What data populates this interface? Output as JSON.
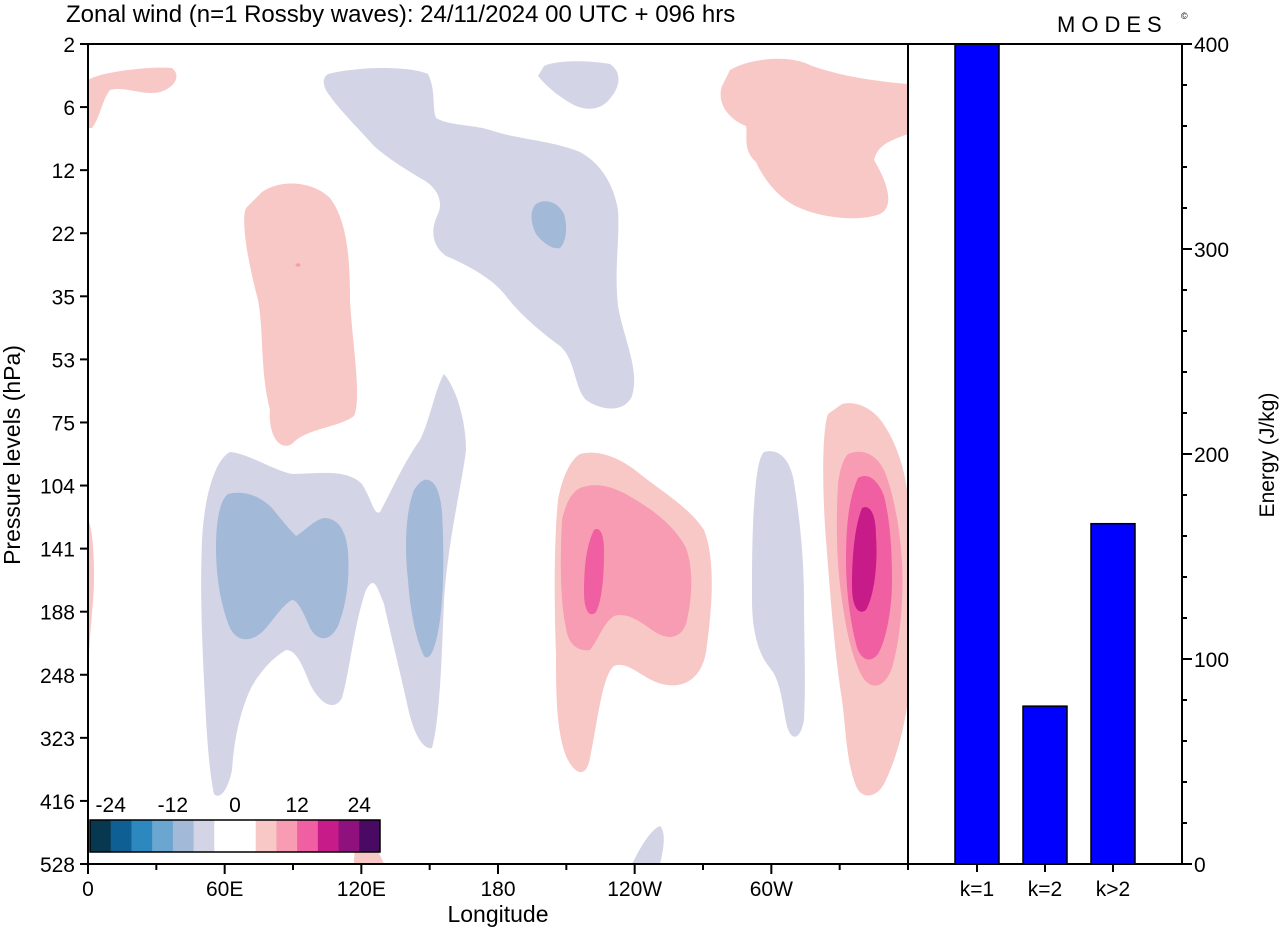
{
  "title": "Zonal wind (n=1 Rossby waves):  24/11/2024  00 UTC  + 096 hrs",
  "logo": "MODES",
  "logo_mark": "©",
  "chart_data": [
    {
      "type": "heatmap",
      "title": "Zonal wind (n=1 Rossby waves):  24/11/2024  00 UTC  + 096 hrs",
      "xlabel": "Longitude",
      "ylabel": "Pressure levels (hPa)",
      "x_ticks": [
        "0",
        "60E",
        "120E",
        "180",
        "120W",
        "60W"
      ],
      "y_ticks": [
        "2",
        "6",
        "12",
        "22",
        "35",
        "53",
        "75",
        "104",
        "141",
        "188",
        "248",
        "323",
        "416",
        "528"
      ],
      "y_scale": "log",
      "colorbar": {
        "tick_labels": [
          "-24",
          "-12",
          "0",
          "12",
          "24"
        ],
        "colors": [
          "#08384f",
          "#0e5f93",
          "#2e88c0",
          "#6aa6cf",
          "#a3b9d8",
          "#d3d4e6",
          "#ffffff",
          "#ffffff",
          "#f8c8c6",
          "#f79cb2",
          "#ef5fa1",
          "#c71b8a",
          "#8e117d",
          "#4a0a64"
        ]
      },
      "features": [
        {
          "sign": "positive",
          "lon_center": 245,
          "pressure_center": 141,
          "peak": 12
        },
        {
          "sign": "positive",
          "lon_center": 347,
          "pressure_center": 141,
          "peak": 18
        },
        {
          "sign": "positive",
          "lon_center": 95,
          "pressure_center": 35,
          "peak": 4
        },
        {
          "sign": "positive",
          "lon_center": 330,
          "pressure_center": 6,
          "peak": 4
        },
        {
          "sign": "negative",
          "lon_center": 85,
          "pressure_center": 141,
          "peak": -8
        },
        {
          "sign": "negative",
          "lon_center": 155,
          "pressure_center": 141,
          "peak": -8
        },
        {
          "sign": "negative",
          "lon_center": 200,
          "pressure_center": 22,
          "peak": -8
        },
        {
          "sign": "negative",
          "lon_center": 305,
          "pressure_center": 188,
          "peak": -4
        }
      ]
    },
    {
      "type": "bar",
      "categories": [
        "k=1",
        "k=2",
        "k>2"
      ],
      "values": [
        400,
        77,
        166
      ],
      "ylabel": "Energy (J/kg)",
      "ylim": [
        0,
        400
      ],
      "y_ticks": [
        "0",
        "100",
        "200",
        "300",
        "400"
      ],
      "bar_color": "#0000ff"
    }
  ]
}
